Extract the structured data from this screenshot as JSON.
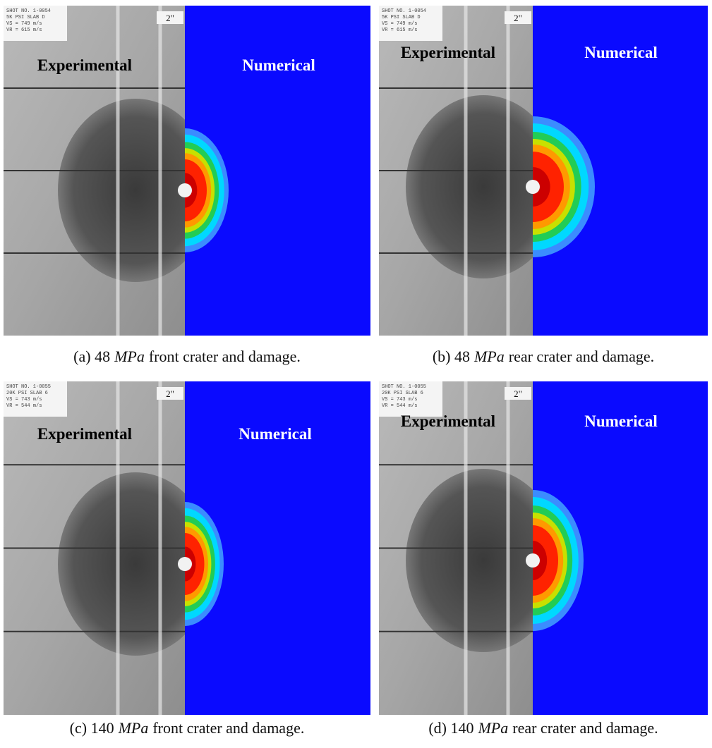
{
  "panels": [
    {
      "tag": [
        "SHOT NO. 1-0054",
        "5K PSI SLAB D",
        "VS = 749 m/s",
        "VR = 615 m/s"
      ],
      "scale": "2\"",
      "left_label": "Experimental",
      "right_label": "Numerical",
      "caption": {
        "prefix": "(a) 48",
        "unit": "MPa",
        "suffix": "front crater and damage."
      }
    },
    {
      "tag": [
        "SHOT NO. 1-0054",
        "5K PSI SLAB D",
        "VS = 749 m/s",
        "VR = 615 m/s"
      ],
      "scale": "2\"",
      "left_label": "Experimental",
      "right_label": "Numerical",
      "caption": {
        "prefix": "(b) 48",
        "unit": "MPa",
        "suffix": "rear crater and damage."
      }
    },
    {
      "tag": [
        "SHOT NO. 1-0055",
        "20K PSI SLAB 6",
        "VS = 743 m/s",
        "VR = 544 m/s"
      ],
      "scale": "2\"",
      "left_label": "Experimental",
      "right_label": "Numerical",
      "caption": {
        "prefix": "(c) 140",
        "unit": "MPa",
        "suffix": "front crater and damage."
      }
    },
    {
      "tag": [
        "SHOT NO. 1-0055",
        "20K PSI SLAB 6",
        "VS = 743 m/s",
        "VR = 544 m/s"
      ],
      "scale": "2\"",
      "left_label": "Experimental",
      "right_label": "Numerical",
      "caption": {
        "prefix": "(d) 140",
        "unit": "MPa",
        "suffix": "rear crater and damage."
      }
    }
  ]
}
